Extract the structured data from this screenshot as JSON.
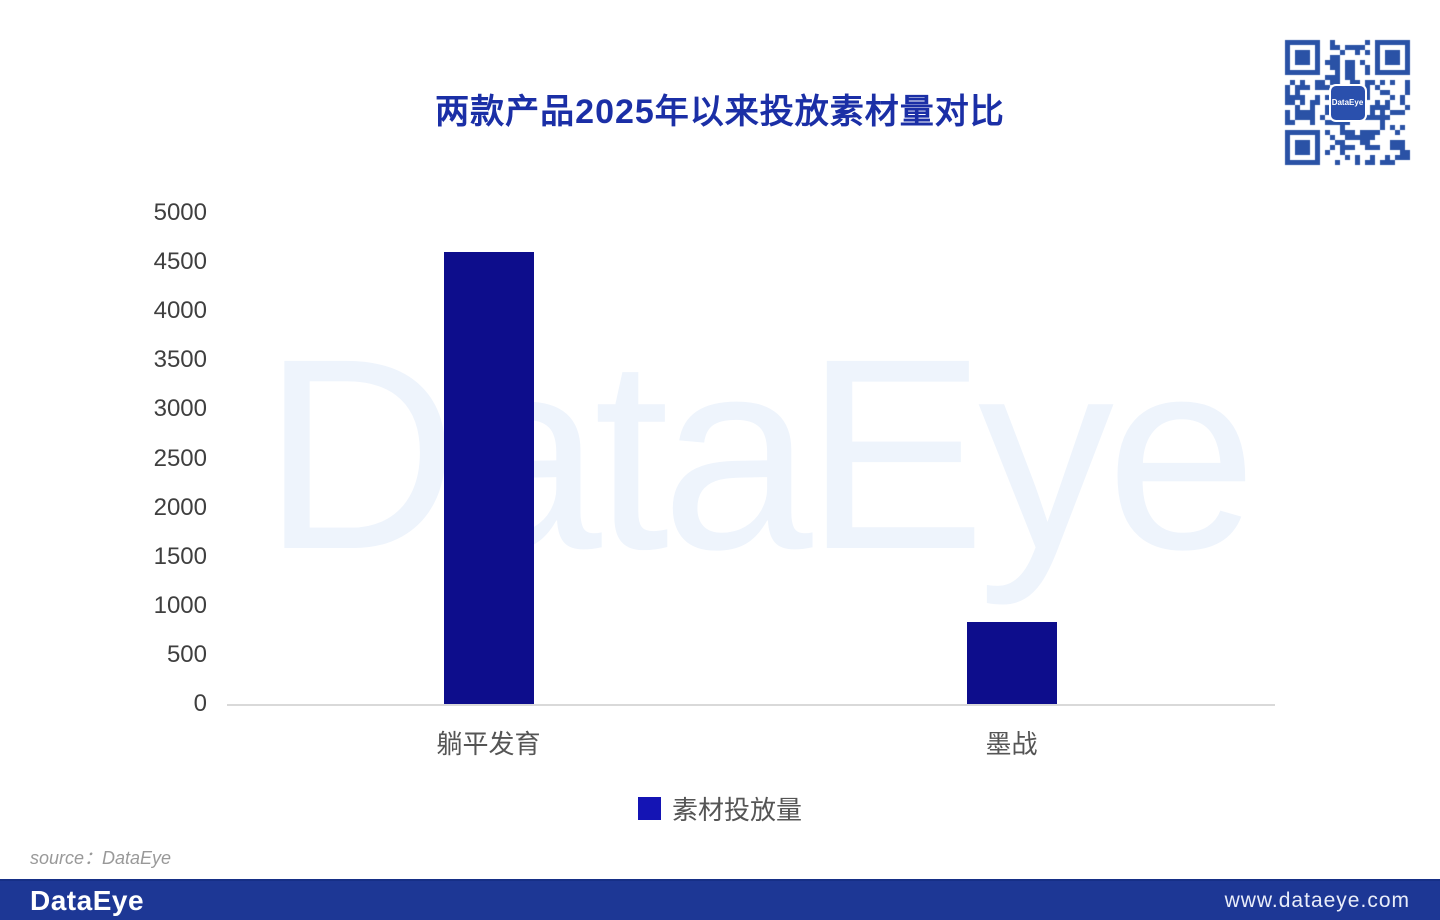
{
  "title": "两款产品2025年以来投放素材量对比",
  "watermark": "DataEye",
  "source_note": "source：DataEye",
  "footer": {
    "logo": "DataEye",
    "url": "www.dataeye.com"
  },
  "qr": {
    "label": "DataEye",
    "icon": "qr-code-icon"
  },
  "colors": {
    "title": "#1b2fa6",
    "bar": "#0d0d8c",
    "legend_marker": "#1414b4",
    "axis_text": "#3f3f3f",
    "category_text": "#555555",
    "baseline": "#d9d9d9",
    "watermark": "#eef4fc",
    "footer_bg": "#1d3795",
    "qr": "#2a52a6"
  },
  "chart_data": {
    "type": "bar",
    "title": "两款产品2025年以来投放素材量对比",
    "categories": [
      "躺平发育",
      "墨战"
    ],
    "series": [
      {
        "name": "素材投放量",
        "values": [
          4600,
          830
        ]
      }
    ],
    "xlabel": "",
    "ylabel": "",
    "ylim": [
      0,
      5000
    ],
    "ytick_step": 500,
    "yticks": [
      "5000",
      "4500",
      "4000",
      "3500",
      "3000",
      "2500",
      "2000",
      "1500",
      "1000",
      "500",
      "0"
    ],
    "grid": false,
    "legend_position": "bottom"
  }
}
